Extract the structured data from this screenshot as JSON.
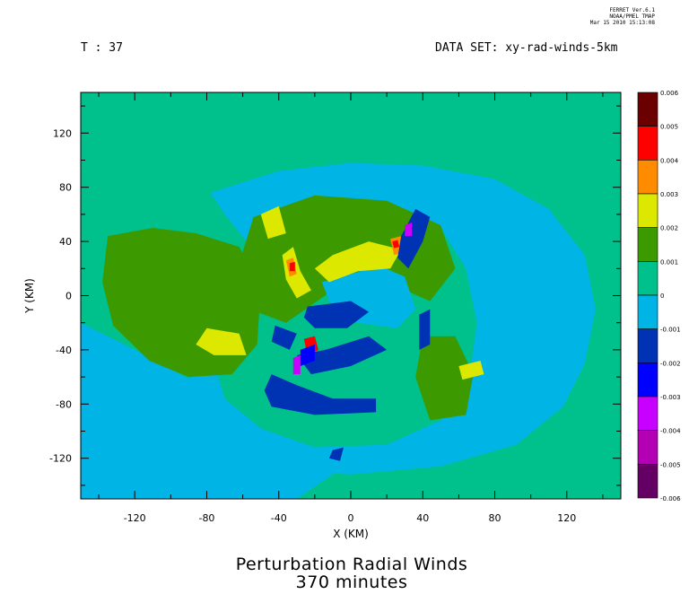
{
  "header": {
    "time_label": "T : 37",
    "dataset_label": "DATA SET: xy-rad-winds-5km",
    "stamp": [
      "FERRET Ver.6.1",
      "NOAA/PMEL TMAP",
      "Mar 15 2010 15:13:08"
    ]
  },
  "chart_data": {
    "type": "heatmap",
    "title": "Perturbation Radial Winds",
    "subtitle": "370 minutes",
    "xlabel": "X (KM)",
    "ylabel": "Y (KM)",
    "xlim": [
      -150,
      150
    ],
    "ylim": [
      -150,
      150
    ],
    "x_ticks": [
      -120,
      -80,
      -40,
      0,
      40,
      80,
      120
    ],
    "y_ticks": [
      120,
      80,
      40,
      0,
      -40,
      -80,
      -120
    ],
    "x_tick_labels": [
      "-120",
      "-80",
      "-40",
      "0",
      "40",
      "80",
      "120"
    ],
    "y_tick_labels": [
      "120",
      "80",
      "40",
      "0",
      "-40",
      "-80",
      "-120"
    ],
    "colorbar": {
      "levels": [
        0.006,
        0.005,
        0.004,
        0.003,
        0.002,
        0.001,
        0,
        -0.001,
        -0.002,
        -0.003,
        -0.004,
        -0.005,
        -0.006
      ],
      "labels": [
        "0.006",
        "0.005",
        "0.004",
        "0.003",
        "0.002",
        "0.001",
        "0",
        "-0.001",
        "-0.002",
        "-0.003",
        "-0.004",
        "-0.005",
        "-0.006"
      ],
      "colors": [
        "#6a0000",
        "#ff0000",
        "#ff8c00",
        "#dde800",
        "#3c9a00",
        "#00c08c",
        "#00b4e6",
        "#0032b4",
        "#0000ff",
        "#c800ff",
        "#b400b4",
        "#640064"
      ]
    },
    "background_color": "#00c08c",
    "regions": [
      {
        "value": -0.0005,
        "points": [
          [
            -78,
            76
          ],
          [
            -40,
            92
          ],
          [
            0,
            98
          ],
          [
            40,
            96
          ],
          [
            80,
            86
          ],
          [
            110,
            64
          ],
          [
            130,
            30
          ],
          [
            136,
            -10
          ],
          [
            130,
            -50
          ],
          [
            118,
            -82
          ],
          [
            92,
            -110
          ],
          [
            50,
            -126
          ],
          [
            0,
            -132
          ],
          [
            -50,
            -128
          ],
          [
            -92,
            -112
          ],
          [
            -118,
            -88
          ],
          [
            -100,
            -66
          ],
          [
            -70,
            -50
          ],
          [
            -50,
            -20
          ],
          [
            -58,
            40
          ],
          [
            -70,
            60
          ]
        ]
      },
      {
        "value": -0.0005,
        "points": [
          [
            -150,
            -20
          ],
          [
            -120,
            -40
          ],
          [
            -92,
            -60
          ],
          [
            -70,
            -80
          ],
          [
            -48,
            -102
          ],
          [
            -30,
            -120
          ],
          [
            -10,
            -132
          ],
          [
            -30,
            -150
          ],
          [
            -150,
            -150
          ]
        ]
      },
      {
        "value": 0.0005,
        "points": [
          [
            -60,
            36
          ],
          [
            -20,
            60
          ],
          [
            20,
            62
          ],
          [
            50,
            50
          ],
          [
            64,
            20
          ],
          [
            70,
            -20
          ],
          [
            66,
            -60
          ],
          [
            50,
            -92
          ],
          [
            20,
            -110
          ],
          [
            -20,
            -112
          ],
          [
            -50,
            -98
          ],
          [
            -70,
            -76
          ],
          [
            -76,
            -50
          ],
          [
            -74,
            -10
          ]
        ]
      },
      {
        "value": 0.0015,
        "points": [
          [
            -135,
            44
          ],
          [
            -110,
            50
          ],
          [
            -86,
            46
          ],
          [
            -62,
            36
          ],
          [
            -50,
            6
          ],
          [
            -52,
            -36
          ],
          [
            -66,
            -58
          ],
          [
            -90,
            -60
          ],
          [
            -112,
            -48
          ],
          [
            -132,
            -22
          ],
          [
            -138,
            10
          ]
        ]
      },
      {
        "value": 0.0015,
        "points": [
          [
            -54,
            58
          ],
          [
            -20,
            74
          ],
          [
            20,
            70
          ],
          [
            50,
            52
          ],
          [
            58,
            20
          ],
          [
            44,
            -4
          ],
          [
            20,
            10
          ],
          [
            -10,
            4
          ],
          [
            -36,
            -20
          ],
          [
            -56,
            -10
          ],
          [
            -62,
            24
          ]
        ]
      },
      {
        "value": 0.0015,
        "points": [
          [
            40,
            -30
          ],
          [
            58,
            -30
          ],
          [
            68,
            -58
          ],
          [
            64,
            -88
          ],
          [
            44,
            -92
          ],
          [
            36,
            -60
          ]
        ]
      },
      {
        "value": -0.0005,
        "points": [
          [
            -16,
            10
          ],
          [
            16,
            22
          ],
          [
            30,
            14
          ],
          [
            36,
            -10
          ],
          [
            26,
            -24
          ],
          [
            4,
            -20
          ],
          [
            -12,
            -4
          ]
        ]
      },
      {
        "value": 0.0025,
        "points": [
          [
            -38,
            30
          ],
          [
            -32,
            36
          ],
          [
            -28,
            18
          ],
          [
            -22,
            4
          ],
          [
            -30,
            -2
          ],
          [
            -36,
            12
          ]
        ]
      },
      {
        "value": 0.0025,
        "points": [
          [
            -10,
            30
          ],
          [
            10,
            40
          ],
          [
            28,
            34
          ],
          [
            22,
            20
          ],
          [
            4,
            18
          ],
          [
            -12,
            10
          ],
          [
            -20,
            20
          ]
        ]
      },
      {
        "value": 0.0025,
        "points": [
          [
            -80,
            -24
          ],
          [
            -62,
            -28
          ],
          [
            -58,
            -44
          ],
          [
            -76,
            -44
          ],
          [
            -86,
            -36
          ]
        ]
      },
      {
        "value": 0.0025,
        "points": [
          [
            60,
            -52
          ],
          [
            72,
            -48
          ],
          [
            74,
            -58
          ],
          [
            62,
            -62
          ]
        ]
      },
      {
        "value": 0.0025,
        "points": [
          [
            -50,
            60
          ],
          [
            -40,
            66
          ],
          [
            -36,
            46
          ],
          [
            -46,
            42
          ]
        ]
      },
      {
        "value": 0.0035,
        "points": [
          [
            -36,
            26
          ],
          [
            -32,
            28
          ],
          [
            -30,
            16
          ],
          [
            -34,
            14
          ]
        ]
      },
      {
        "value": 0.0035,
        "points": [
          [
            22,
            42
          ],
          [
            28,
            44
          ],
          [
            30,
            32
          ],
          [
            24,
            30
          ]
        ]
      },
      {
        "value": 0.0045,
        "points": [
          [
            -34,
            24
          ],
          [
            -31,
            25
          ],
          [
            -31,
            18
          ],
          [
            -34,
            18
          ]
        ]
      },
      {
        "value": 0.0045,
        "points": [
          [
            23,
            40
          ],
          [
            26,
            41
          ],
          [
            27,
            36
          ],
          [
            24,
            35
          ]
        ]
      },
      {
        "value": 0.0045,
        "points": [
          [
            -26,
            -32
          ],
          [
            -20,
            -30
          ],
          [
            -18,
            -40
          ],
          [
            -24,
            -44
          ]
        ]
      },
      {
        "value": -0.0015,
        "points": [
          [
            -24,
            -8
          ],
          [
            0,
            -4
          ],
          [
            10,
            -12
          ],
          [
            -2,
            -24
          ],
          [
            -20,
            -24
          ],
          [
            -26,
            -16
          ]
        ]
      },
      {
        "value": -0.0015,
        "points": [
          [
            -30,
            -44
          ],
          [
            -14,
            -40
          ],
          [
            10,
            -30
          ],
          [
            20,
            -40
          ],
          [
            0,
            -52
          ],
          [
            -22,
            -58
          ]
        ]
      },
      {
        "value": -0.0015,
        "points": [
          [
            -44,
            -58
          ],
          [
            -30,
            -66
          ],
          [
            -10,
            -76
          ],
          [
            14,
            -76
          ],
          [
            14,
            -86
          ],
          [
            -20,
            -88
          ],
          [
            -44,
            -82
          ],
          [
            -48,
            -70
          ]
        ]
      },
      {
        "value": -0.0015,
        "points": [
          [
            -42,
            -22
          ],
          [
            -30,
            -28
          ],
          [
            -34,
            -40
          ],
          [
            -44,
            -34
          ]
        ]
      },
      {
        "value": -0.0015,
        "points": [
          [
            32,
            20
          ],
          [
            40,
            40
          ],
          [
            44,
            58
          ],
          [
            36,
            64
          ],
          [
            28,
            44
          ],
          [
            26,
            28
          ]
        ]
      },
      {
        "value": -0.0015,
        "points": [
          [
            38,
            -14
          ],
          [
            44,
            -10
          ],
          [
            44,
            -36
          ],
          [
            38,
            -40
          ]
        ]
      },
      {
        "value": -0.0015,
        "points": [
          [
            -10,
            -114
          ],
          [
            -4,
            -112
          ],
          [
            -6,
            -122
          ],
          [
            -12,
            -120
          ]
        ]
      },
      {
        "value": -0.0025,
        "points": [
          [
            -28,
            -40
          ],
          [
            -20,
            -36
          ],
          [
            -20,
            -48
          ],
          [
            -28,
            -52
          ]
        ]
      },
      {
        "value": -0.0035,
        "points": [
          [
            -32,
            -46
          ],
          [
            -28,
            -44
          ],
          [
            -28,
            -58
          ],
          [
            -32,
            -58
          ]
        ]
      },
      {
        "value": -0.0035,
        "points": [
          [
            30,
            52
          ],
          [
            34,
            54
          ],
          [
            34,
            44
          ],
          [
            30,
            44
          ]
        ]
      }
    ]
  }
}
